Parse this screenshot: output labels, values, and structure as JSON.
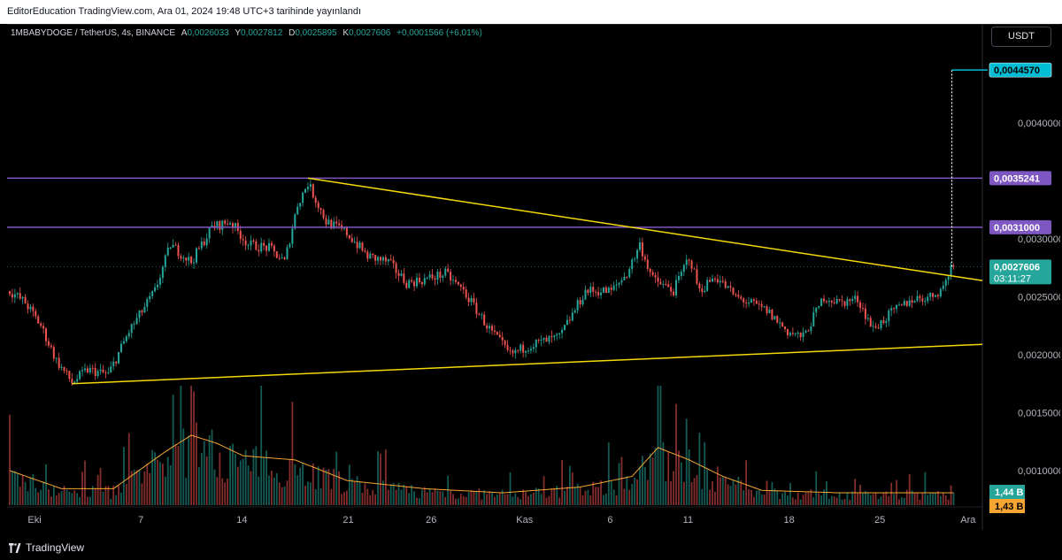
{
  "header": {
    "published": "EditorEducation TradingView.com, Ara 01, 2024 19:48 UTC+3 tarihinde yayınlandı"
  },
  "legend": {
    "symbol": "1MBABYDOGE / TetherUS, 4s, BINANCE",
    "open_label": "A",
    "open": "0,0026033",
    "high_label": "Y",
    "high": "0,0027812",
    "low_label": "D",
    "low": "0,0025895",
    "close_label": "K",
    "close": "0,0027606",
    "change": "+0,0001566 (+6,01%)"
  },
  "currency_button": "USDT",
  "footer": {
    "brand": "TradingView"
  },
  "colors": {
    "up": "#26a69a",
    "down": "#ef5350",
    "level": "#7e57c2",
    "trend": "#f5d90a",
    "target": "#00bcd4",
    "volume_ma": "#f6a531"
  },
  "chart_data": {
    "type": "candlestick",
    "y_ticks": [
      "0,0040000",
      "0,0030000",
      "0,0025000",
      "0,0020000",
      "0,0015000",
      "0,0010000"
    ],
    "y_tick_values": [
      0.004,
      0.003,
      0.0025,
      0.002,
      0.0015,
      0.001
    ],
    "x_ticks": [
      "Eki",
      "7",
      "14",
      "21",
      "26",
      "Kas",
      "6",
      "11",
      "18",
      "25",
      "Ara"
    ],
    "x_tick_index": [
      0,
      41,
      80,
      121,
      153,
      189,
      222,
      252,
      291,
      326,
      360
    ],
    "price_labels": [
      {
        "label": "0,0044570",
        "value": 0.004457,
        "kind": "target"
      },
      {
        "label": "0,0035241",
        "value": 0.0035241,
        "kind": "level"
      },
      {
        "label": "0,0031000",
        "value": 0.0031,
        "kind": "level"
      },
      {
        "label": "0,0027606",
        "value": 0.0027606,
        "kind": "last",
        "countdown": "03:11:27"
      }
    ],
    "horizontal_levels": [
      0.0035241,
      0.0031
    ],
    "trendlines": [
      {
        "from": [
          115,
          0.0035241
        ],
        "to": [
          380,
          0.00264
        ]
      },
      {
        "from": [
          24,
          0.00175
        ],
        "to": [
          380,
          0.00209
        ]
      }
    ],
    "target_projection": {
      "at_index": 364,
      "from": 0.0027606,
      "to": 0.004457
    },
    "volume_labels": [
      {
        "label": "1,44 B",
        "kind": "volume"
      },
      {
        "label": "1,43 B",
        "kind": "volume_ma"
      }
    ],
    "anchors": [
      [
        0,
        0.00255
      ],
      [
        6,
        0.00245
      ],
      [
        12,
        0.00225
      ],
      [
        18,
        0.00195
      ],
      [
        24,
        0.00176
      ],
      [
        30,
        0.00187
      ],
      [
        38,
        0.00183
      ],
      [
        46,
        0.0022
      ],
      [
        56,
        0.00255
      ],
      [
        62,
        0.00295
      ],
      [
        70,
        0.0028
      ],
      [
        78,
        0.0031
      ],
      [
        85,
        0.00315
      ],
      [
        92,
        0.00295
      ],
      [
        100,
        0.00292
      ],
      [
        106,
        0.0028
      ],
      [
        111,
        0.0033
      ],
      [
        115,
        0.00348
      ],
      [
        122,
        0.00315
      ],
      [
        130,
        0.00305
      ],
      [
        138,
        0.00285
      ],
      [
        146,
        0.0028
      ],
      [
        153,
        0.00262
      ],
      [
        160,
        0.00265
      ],
      [
        168,
        0.0027
      ],
      [
        175,
        0.00255
      ],
      [
        185,
        0.00222
      ],
      [
        193,
        0.002
      ],
      [
        200,
        0.00208
      ],
      [
        212,
        0.00215
      ],
      [
        222,
        0.00255
      ],
      [
        232,
        0.00255
      ],
      [
        238,
        0.0027
      ],
      [
        243,
        0.00295
      ],
      [
        248,
        0.00265
      ],
      [
        256,
        0.00255
      ],
      [
        262,
        0.00285
      ],
      [
        266,
        0.00255
      ],
      [
        272,
        0.00268
      ],
      [
        280,
        0.0025
      ],
      [
        292,
        0.00238
      ],
      [
        300,
        0.0022
      ],
      [
        306,
        0.00215
      ],
      [
        314,
        0.0025
      ],
      [
        320,
        0.00245
      ],
      [
        327,
        0.00248
      ],
      [
        333,
        0.00222
      ],
      [
        340,
        0.00236
      ],
      [
        348,
        0.00248
      ],
      [
        355,
        0.0025
      ],
      [
        360,
        0.00258
      ],
      [
        363,
        0.00276
      ]
    ],
    "volume_anchors": [
      [
        0,
        0.42
      ],
      [
        20,
        0.2
      ],
      [
        40,
        0.2
      ],
      [
        60,
        0.65
      ],
      [
        70,
        0.85
      ],
      [
        80,
        0.75
      ],
      [
        90,
        0.6
      ],
      [
        110,
        0.55
      ],
      [
        130,
        0.3
      ],
      [
        160,
        0.2
      ],
      [
        190,
        0.15
      ],
      [
        220,
        0.22
      ],
      [
        240,
        0.35
      ],
      [
        250,
        0.7
      ],
      [
        262,
        0.55
      ],
      [
        275,
        0.35
      ],
      [
        290,
        0.18
      ],
      [
        320,
        0.15
      ],
      [
        363,
        0.15
      ]
    ]
  }
}
